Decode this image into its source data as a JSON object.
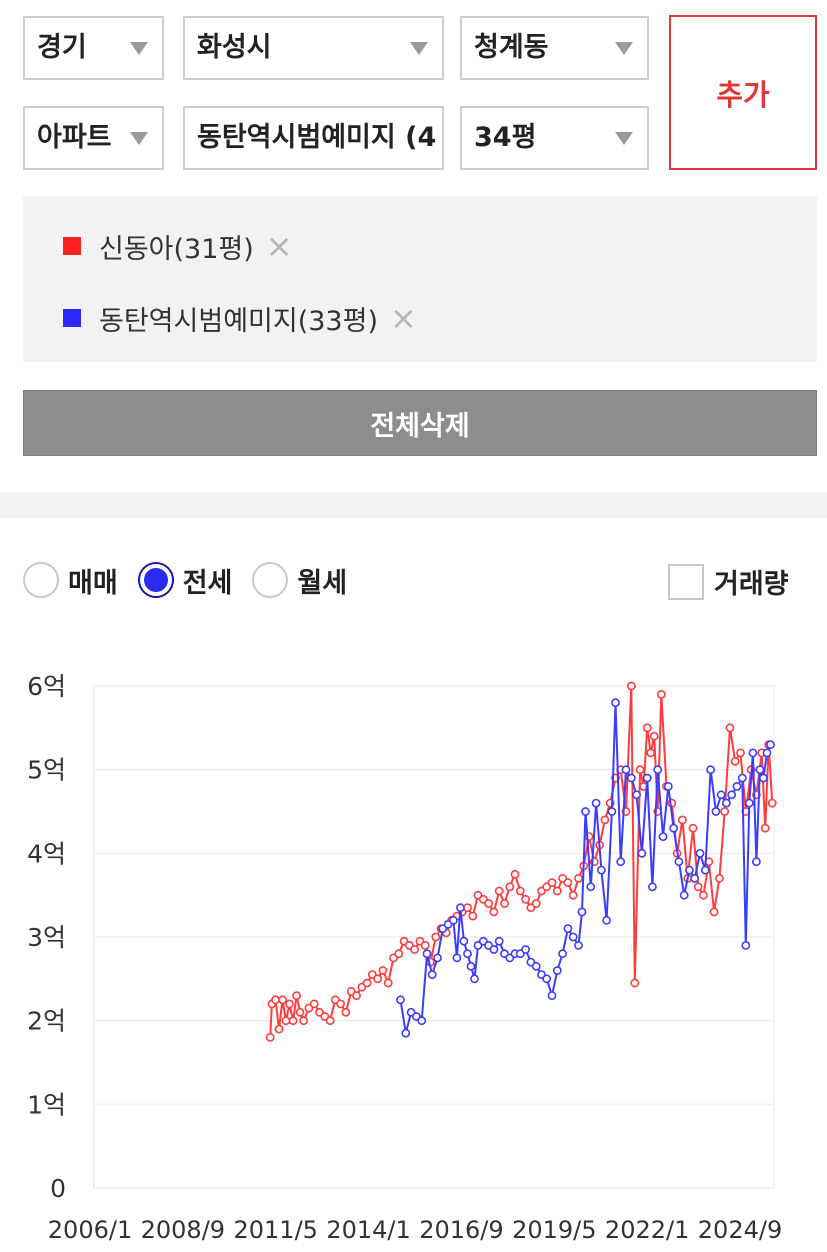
{
  "filters": {
    "region": "경기",
    "city": "화성시",
    "dong": "청계동",
    "type": "아파트",
    "complex": "동탄역시범예미지 (4",
    "size": "34평",
    "add_label": "추가"
  },
  "compare_list": [
    {
      "label": "신동아(31평)",
      "color": "#ff2020"
    },
    {
      "label": "동탄역시범예미지(33평)",
      "color": "#2828ff"
    }
  ],
  "remove_icon": "×",
  "clear_all_label": "전체삭제",
  "deal_types": [
    {
      "label": "매매",
      "selected": false
    },
    {
      "label": "전세",
      "selected": true
    },
    {
      "label": "월세",
      "selected": false
    }
  ],
  "volume_label": "거래량",
  "chart_data": {
    "type": "line",
    "title": "",
    "xlabel": "",
    "ylabel": "",
    "x_ticks": [
      "2006/1",
      "2008/9",
      "2011/5",
      "2014/1",
      "2016/9",
      "2019/5",
      "2022/1",
      "2024/9"
    ],
    "y_ticks": [
      "0",
      "1억",
      "2억",
      "3억",
      "4억",
      "5억",
      "6억"
    ],
    "ylim": [
      0,
      6
    ],
    "xlim": [
      2006.0,
      2025.3
    ],
    "y_unit": "억",
    "grid": true,
    "series": [
      {
        "name": "신동아(31평)",
        "color": "#ff3b3b",
        "points": [
          [
            2011.0,
            1.8
          ],
          [
            2011.05,
            2.2
          ],
          [
            2011.15,
            2.25
          ],
          [
            2011.25,
            1.9
          ],
          [
            2011.35,
            2.25
          ],
          [
            2011.45,
            2.0
          ],
          [
            2011.55,
            2.2
          ],
          [
            2011.65,
            2.0
          ],
          [
            2011.75,
            2.3
          ],
          [
            2011.85,
            2.1
          ],
          [
            2011.95,
            2.0
          ],
          [
            2012.1,
            2.15
          ],
          [
            2012.25,
            2.2
          ],
          [
            2012.4,
            2.1
          ],
          [
            2012.55,
            2.05
          ],
          [
            2012.7,
            2.0
          ],
          [
            2012.85,
            2.25
          ],
          [
            2013.0,
            2.2
          ],
          [
            2013.15,
            2.1
          ],
          [
            2013.3,
            2.35
          ],
          [
            2013.45,
            2.3
          ],
          [
            2013.6,
            2.4
          ],
          [
            2013.75,
            2.45
          ],
          [
            2013.9,
            2.55
          ],
          [
            2014.05,
            2.5
          ],
          [
            2014.2,
            2.6
          ],
          [
            2014.35,
            2.45
          ],
          [
            2014.5,
            2.75
          ],
          [
            2014.65,
            2.8
          ],
          [
            2014.8,
            2.95
          ],
          [
            2014.95,
            2.9
          ],
          [
            2015.1,
            2.85
          ],
          [
            2015.25,
            2.95
          ],
          [
            2015.4,
            2.9
          ],
          [
            2015.55,
            2.7
          ],
          [
            2015.7,
            3.0
          ],
          [
            2015.85,
            3.1
          ],
          [
            2016.0,
            3.05
          ],
          [
            2016.15,
            3.2
          ],
          [
            2016.3,
            3.25
          ],
          [
            2016.45,
            3.3
          ],
          [
            2016.6,
            3.35
          ],
          [
            2016.75,
            3.25
          ],
          [
            2016.9,
            3.5
          ],
          [
            2017.05,
            3.45
          ],
          [
            2017.2,
            3.4
          ],
          [
            2017.35,
            3.3
          ],
          [
            2017.5,
            3.55
          ],
          [
            2017.65,
            3.4
          ],
          [
            2017.8,
            3.6
          ],
          [
            2017.95,
            3.75
          ],
          [
            2018.1,
            3.55
          ],
          [
            2018.25,
            3.45
          ],
          [
            2018.4,
            3.35
          ],
          [
            2018.55,
            3.4
          ],
          [
            2018.7,
            3.55
          ],
          [
            2018.85,
            3.6
          ],
          [
            2019.0,
            3.65
          ],
          [
            2019.15,
            3.55
          ],
          [
            2019.3,
            3.7
          ],
          [
            2019.45,
            3.65
          ],
          [
            2019.6,
            3.5
          ],
          [
            2019.75,
            3.7
          ],
          [
            2019.9,
            3.85
          ],
          [
            2020.05,
            4.2
          ],
          [
            2020.2,
            3.9
          ],
          [
            2020.35,
            4.1
          ],
          [
            2020.5,
            4.4
          ],
          [
            2020.65,
            4.6
          ],
          [
            2020.8,
            4.9
          ],
          [
            2020.95,
            5.0
          ],
          [
            2021.1,
            4.5
          ],
          [
            2021.25,
            6.0
          ],
          [
            2021.35,
            2.45
          ],
          [
            2021.5,
            5.0
          ],
          [
            2021.6,
            4.8
          ],
          [
            2021.7,
            5.5
          ],
          [
            2021.8,
            5.2
          ],
          [
            2021.9,
            5.4
          ],
          [
            2022.0,
            4.5
          ],
          [
            2022.1,
            5.9
          ],
          [
            2022.25,
            4.8
          ],
          [
            2022.4,
            4.6
          ],
          [
            2022.55,
            4.0
          ],
          [
            2022.7,
            4.4
          ],
          [
            2022.85,
            3.7
          ],
          [
            2023.0,
            4.3
          ],
          [
            2023.15,
            3.6
          ],
          [
            2023.3,
            3.5
          ],
          [
            2023.45,
            3.9
          ],
          [
            2023.6,
            3.3
          ],
          [
            2023.75,
            3.7
          ],
          [
            2023.9,
            4.5
          ],
          [
            2024.05,
            5.5
          ],
          [
            2024.2,
            5.1
          ],
          [
            2024.35,
            5.2
          ],
          [
            2024.5,
            4.5
          ],
          [
            2024.65,
            5.0
          ],
          [
            2024.8,
            4.7
          ],
          [
            2024.95,
            5.2
          ],
          [
            2025.05,
            4.3
          ],
          [
            2025.15,
            5.3
          ],
          [
            2025.25,
            4.6
          ]
        ]
      },
      {
        "name": "동탄역시범예미지(33평)",
        "color": "#3c3cff",
        "points": [
          [
            2014.7,
            2.25
          ],
          [
            2014.85,
            1.85
          ],
          [
            2015.0,
            2.1
          ],
          [
            2015.15,
            2.05
          ],
          [
            2015.3,
            2.0
          ],
          [
            2015.45,
            2.8
          ],
          [
            2015.6,
            2.55
          ],
          [
            2015.75,
            2.75
          ],
          [
            2015.9,
            3.1
          ],
          [
            2016.05,
            3.15
          ],
          [
            2016.2,
            3.2
          ],
          [
            2016.3,
            2.75
          ],
          [
            2016.4,
            3.35
          ],
          [
            2016.5,
            2.95
          ],
          [
            2016.6,
            2.8
          ],
          [
            2016.7,
            2.65
          ],
          [
            2016.8,
            2.5
          ],
          [
            2016.9,
            2.9
          ],
          [
            2017.05,
            2.95
          ],
          [
            2017.2,
            2.9
          ],
          [
            2017.35,
            2.85
          ],
          [
            2017.5,
            2.95
          ],
          [
            2017.65,
            2.8
          ],
          [
            2017.8,
            2.75
          ],
          [
            2017.95,
            2.8
          ],
          [
            2018.1,
            2.8
          ],
          [
            2018.25,
            2.85
          ],
          [
            2018.4,
            2.7
          ],
          [
            2018.55,
            2.65
          ],
          [
            2018.7,
            2.55
          ],
          [
            2018.85,
            2.5
          ],
          [
            2019.0,
            2.3
          ],
          [
            2019.15,
            2.6
          ],
          [
            2019.3,
            2.8
          ],
          [
            2019.45,
            3.1
          ],
          [
            2019.6,
            3.0
          ],
          [
            2019.75,
            2.9
          ],
          [
            2019.85,
            3.3
          ],
          [
            2019.95,
            4.5
          ],
          [
            2020.1,
            3.6
          ],
          [
            2020.25,
            4.6
          ],
          [
            2020.4,
            3.8
          ],
          [
            2020.55,
            3.2
          ],
          [
            2020.7,
            4.5
          ],
          [
            2020.8,
            5.8
          ],
          [
            2020.95,
            3.9
          ],
          [
            2021.1,
            5.0
          ],
          [
            2021.25,
            4.9
          ],
          [
            2021.4,
            4.7
          ],
          [
            2021.55,
            4.0
          ],
          [
            2021.7,
            4.9
          ],
          [
            2021.85,
            3.6
          ],
          [
            2022.0,
            5.0
          ],
          [
            2022.15,
            4.2
          ],
          [
            2022.3,
            4.8
          ],
          [
            2022.45,
            4.3
          ],
          [
            2022.6,
            3.9
          ],
          [
            2022.75,
            3.5
          ],
          [
            2022.9,
            3.8
          ],
          [
            2023.05,
            3.7
          ],
          [
            2023.2,
            4.0
          ],
          [
            2023.35,
            3.8
          ],
          [
            2023.5,
            5.0
          ],
          [
            2023.65,
            4.5
          ],
          [
            2023.8,
            4.7
          ],
          [
            2023.95,
            4.6
          ],
          [
            2024.1,
            4.7
          ],
          [
            2024.25,
            4.8
          ],
          [
            2024.4,
            4.9
          ],
          [
            2024.5,
            2.9
          ],
          [
            2024.6,
            4.6
          ],
          [
            2024.7,
            5.2
          ],
          [
            2024.8,
            3.9
          ],
          [
            2024.9,
            5.0
          ],
          [
            2025.0,
            4.9
          ],
          [
            2025.1,
            5.2
          ],
          [
            2025.2,
            5.3
          ]
        ]
      }
    ]
  }
}
